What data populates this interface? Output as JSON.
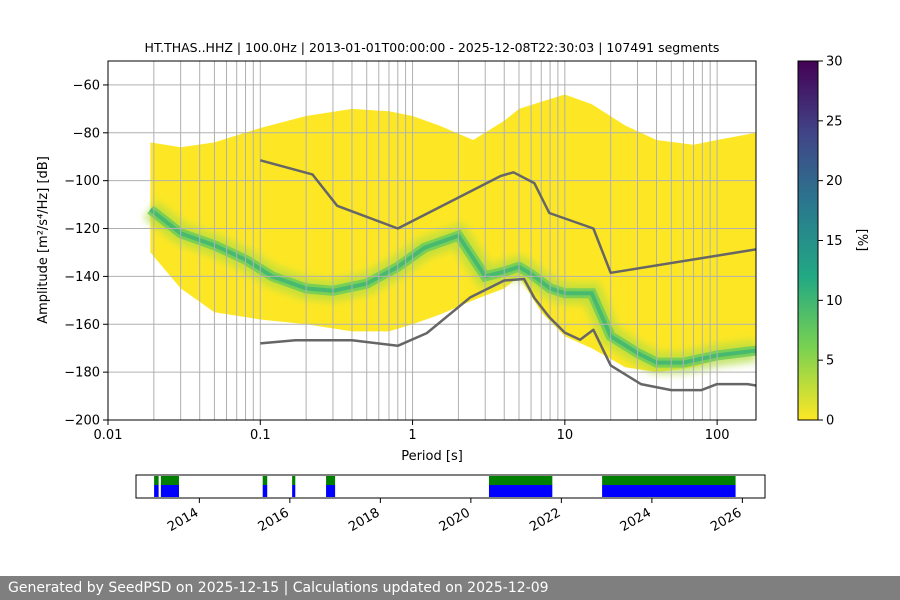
{
  "chart_data": [
    {
      "type": "heatmap",
      "title": "HT.THAS..HHZ | 100.0Hz | 2013-01-01T00:00:00 - 2025-12-08T22:30:03 | 107491 segments",
      "xlabel": "Period [s]",
      "ylabel": "Amplitude [m²/s⁴/Hz] [dB]",
      "xscale": "log",
      "xlim": [
        0.01,
        180
      ],
      "ylim": [
        -200,
        -50
      ],
      "grid": true,
      "x_ticks": [
        "0.01",
        "0.1",
        "1",
        "10",
        "100"
      ],
      "y_ticks": [
        "−60",
        "−80",
        "−100",
        "−120",
        "−140",
        "−160",
        "−180",
        "−200"
      ],
      "colorbar": {
        "label": "[%]",
        "range": [
          0,
          30
        ],
        "ticks": [
          "0",
          "5",
          "10",
          "15",
          "20",
          "25",
          "30"
        ],
        "colormap": "viridis_r"
      },
      "density_envelope": {
        "period": [
          0.019,
          0.03,
          0.05,
          0.1,
          0.2,
          0.4,
          0.7,
          1,
          1.5,
          2.5,
          4,
          5,
          7,
          10,
          15,
          25,
          40,
          70,
          100,
          180
        ],
        "upper_db": [
          -84,
          -86,
          -84,
          -78,
          -73,
          -70,
          -71,
          -73,
          -77,
          -83,
          -75,
          -70,
          -67,
          -64,
          -68,
          -77,
          -83,
          -85,
          -83,
          -80
        ],
        "lower_db": [
          -130,
          -145,
          -155,
          -158,
          -160,
          -163,
          -163,
          -160,
          -156,
          -150,
          -145,
          -140,
          -155,
          -165,
          -170,
          -178,
          -180,
          -178,
          -175,
          -172
        ]
      },
      "mode_curve": {
        "period": [
          0.019,
          0.03,
          0.05,
          0.08,
          0.12,
          0.2,
          0.3,
          0.5,
          0.8,
          1.2,
          2,
          3,
          4,
          5,
          6,
          8,
          10,
          15,
          20,
          30,
          40,
          60,
          100,
          180
        ],
        "db": [
          -112,
          -122,
          -127,
          -133,
          -140,
          -145,
          -146,
          -143,
          -136,
          -128,
          -123,
          -140,
          -138,
          -136,
          -139,
          -145,
          -147,
          -147,
          -165,
          -172,
          -176,
          -176,
          -173,
          -171
        ]
      },
      "series": [
        {
          "name": "",
          "color": "#666666",
          "period": [
            0.1,
            0.22,
            0.32,
            0.8,
            3.8,
            4.6,
            6.3,
            7.9,
            15.4,
            20,
            180
          ],
          "db": [
            -91.5,
            -97.4,
            -110.5,
            -120,
            -98,
            -96.5,
            -101,
            -113.5,
            -120,
            -138.5,
            -128.7
          ]
        },
        {
          "name": "",
          "color": "#666666",
          "period": [
            0.1,
            0.17,
            0.4,
            0.8,
            1.24,
            2.4,
            4,
            5.4,
            6.3,
            7.9,
            10,
            12.6,
            15.4,
            20,
            31.6,
            50,
            79,
            100,
            158,
            180
          ],
          "db": [
            -168,
            -166.7,
            -166.7,
            -169,
            -163.7,
            -148.7,
            -141.7,
            -141.1,
            -149,
            -157,
            -163.5,
            -166.5,
            -162.3,
            -177.2,
            -185,
            -187.5,
            -187.5,
            -185,
            -185,
            -185.6
          ]
        }
      ]
    },
    {
      "type": "timeline",
      "x_ticks": [
        "2014",
        "2016",
        "2018",
        "2020",
        "2022",
        "2024",
        "2026"
      ],
      "xlim_years": [
        2012.6,
        2026.5
      ],
      "colors": {
        "upper": "#008000",
        "lower": "#0000ff"
      },
      "data_periods": [
        {
          "start": 2013.0,
          "end": 2013.1,
          "both": true
        },
        {
          "start": 2013.15,
          "end": 2013.55,
          "both": true
        },
        {
          "start": 2015.4,
          "end": 2015.5,
          "both": true
        },
        {
          "start": 2016.05,
          "end": 2016.12,
          "both": true
        },
        {
          "start": 2016.8,
          "end": 2017.0,
          "both": true
        },
        {
          "start": 2020.4,
          "end": 2021.8,
          "both": true
        },
        {
          "start": 2022.9,
          "end": 2025.85,
          "both": true
        }
      ]
    }
  ],
  "footer": "Generated by SeedPSD on 2025-12-15 | Calculations updated on 2025-12-09"
}
